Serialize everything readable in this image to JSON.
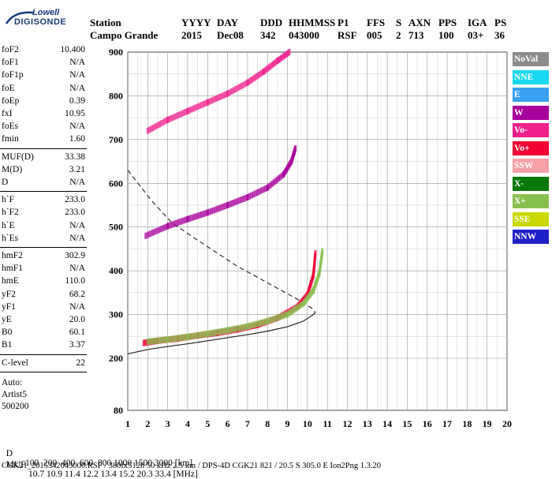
{
  "logo": {
    "line1": "Lowell",
    "line2": "DIGISONDE"
  },
  "header": {
    "row1": [
      "Station",
      "YYYY",
      "DAY",
      "DDD",
      "HHMMSS",
      "P1",
      "FFS",
      "S",
      "AXN",
      "PPS",
      "IGA",
      "PS"
    ],
    "row2": [
      "Campo Grande",
      "2015",
      "Dec08",
      "342",
      "043000",
      "RSF",
      "005",
      "2",
      "713",
      "100",
      "03+",
      "36"
    ]
  },
  "params_group1": [
    {
      "name": "foF2",
      "value": "10.400"
    },
    {
      "name": "foF1",
      "value": "N/A"
    },
    {
      "name": "foF1p",
      "value": "N/A"
    },
    {
      "name": "foE",
      "value": "N/A"
    },
    {
      "name": "foEp",
      "value": "0.39"
    },
    {
      "name": "fxI",
      "value": "10.95"
    },
    {
      "name": "foEs",
      "value": "N/A"
    },
    {
      "name": "fmin",
      "value": "1.60"
    }
  ],
  "params_group2": [
    {
      "name": "MUF(D)",
      "value": "33.38"
    },
    {
      "name": "M(D)",
      "value": "3.21"
    },
    {
      "name": "D",
      "value": "N/A"
    }
  ],
  "params_group3": [
    {
      "name": "h`F",
      "value": "233.0"
    },
    {
      "name": "h`F2",
      "value": "233.0"
    },
    {
      "name": "h`E",
      "value": "N/A"
    },
    {
      "name": "h`Es",
      "value": "N/A"
    }
  ],
  "params_group4": [
    {
      "name": "hmF2",
      "value": "302.9"
    },
    {
      "name": "hmF1",
      "value": "N/A"
    },
    {
      "name": "hmE",
      "value": "110.0"
    },
    {
      "name": "yF2",
      "value": "68.2"
    },
    {
      "name": "yF1",
      "value": "N/A"
    },
    {
      "name": "yE",
      "value": "20.0"
    },
    {
      "name": "B0",
      "value": "60.1"
    },
    {
      "name": "B1",
      "value": "3.37"
    }
  ],
  "params_group5": [
    {
      "name": "C-level",
      "value": "22"
    }
  ],
  "autoscaling": {
    "line1": "Auto:",
    "line2": "Artist5",
    "line3": "500200"
  },
  "legend": [
    {
      "label": "NoVal",
      "color": "#8c8c8c",
      "text_color": "#ffffff"
    },
    {
      "label": "NNE",
      "color": "#18d8f0",
      "text_color": "#ffffff"
    },
    {
      "label": "E",
      "color": "#3aa0f0",
      "text_color": "#ffffff"
    },
    {
      "label": "W",
      "color": "#a8009c",
      "text_color": "#ffffff"
    },
    {
      "label": "Vo-",
      "color": "#f0208c",
      "text_color": "#ffffff"
    },
    {
      "label": "Vo+",
      "color": "#f00034",
      "text_color": "#ffffff"
    },
    {
      "label": "SSW",
      "color": "#f8a0a8",
      "text_color": "#ffffff"
    },
    {
      "label": "X-",
      "color": "#087808",
      "text_color": "#ffffff"
    },
    {
      "label": "X+",
      "color": "#88c050",
      "text_color": "#ffffff"
    },
    {
      "label": "SSE",
      "color": "#c8d800",
      "text_color": "#ffffff"
    },
    {
      "label": "NNW",
      "color": "#2020c8",
      "text_color": "#ffffff"
    }
  ],
  "footer": {
    "d_label": "D",
    "d_values": "100  200  400  600  800 1000 1500 3000 [km]",
    "muf_label": "MUF",
    "muf_values": "10.7 10.9 11.4 12.2 13.4 15.2 20.3 33.4 [MHz]",
    "file_line": "CGK21_2015342043000.RSF / 380fx512h 50 kHz 2.5 km / DPS-4D CGK21 821 / 20.5 S 305.0 E Ion2Png 1.3.20"
  },
  "chart_data": {
    "type": "scatter",
    "x_ticks": [
      "1",
      "2",
      "3",
      "4",
      "5",
      "6",
      "7",
      "8",
      "9",
      "10",
      "11",
      "12",
      "13",
      "14",
      "15",
      "16",
      "17",
      "18",
      "19",
      "20"
    ],
    "y_ticks": [
      "80",
      "200",
      "300",
      "400",
      "500",
      "600",
      "700",
      "800",
      "900"
    ],
    "xlim": [
      1,
      20
    ],
    "grid": true,
    "series": [
      {
        "name": "Vo+",
        "color": "#f00034",
        "points": [
          [
            1.8,
            235
          ],
          [
            2.5,
            240
          ],
          [
            3.5,
            245
          ],
          [
            4.5,
            252
          ],
          [
            5.5,
            258
          ],
          [
            6.5,
            266
          ],
          [
            7.5,
            276
          ],
          [
            8.5,
            292
          ],
          [
            9.5,
            318
          ],
          [
            10,
            345
          ],
          [
            10.3,
            390
          ],
          [
            10.4,
            440
          ]
        ]
      },
      {
        "name": "X+",
        "color": "#88c050",
        "points": [
          [
            2,
            238
          ],
          [
            3,
            243
          ],
          [
            4,
            249
          ],
          [
            5,
            256
          ],
          [
            6,
            264
          ],
          [
            7,
            273
          ],
          [
            8,
            285
          ],
          [
            9,
            300
          ],
          [
            9.8,
            325
          ],
          [
            10.3,
            355
          ],
          [
            10.6,
            395
          ],
          [
            10.75,
            445
          ]
        ]
      },
      {
        "name": "W",
        "color": "#a8009c",
        "points": [
          [
            1.9,
            480
          ],
          [
            3,
            502
          ],
          [
            4,
            518
          ],
          [
            5,
            533
          ],
          [
            6,
            550
          ],
          [
            7,
            568
          ],
          [
            8,
            590
          ],
          [
            8.8,
            620
          ],
          [
            9.2,
            650
          ],
          [
            9.4,
            680
          ]
        ]
      },
      {
        "name": "Vo-",
        "color": "#f0208c",
        "points": [
          [
            2,
            720
          ],
          [
            3,
            745
          ],
          [
            4,
            765
          ],
          [
            5,
            785
          ],
          [
            6,
            805
          ],
          [
            7,
            830
          ],
          [
            7.8,
            855
          ],
          [
            8.5,
            880
          ],
          [
            9.1,
            900
          ]
        ]
      }
    ]
  }
}
